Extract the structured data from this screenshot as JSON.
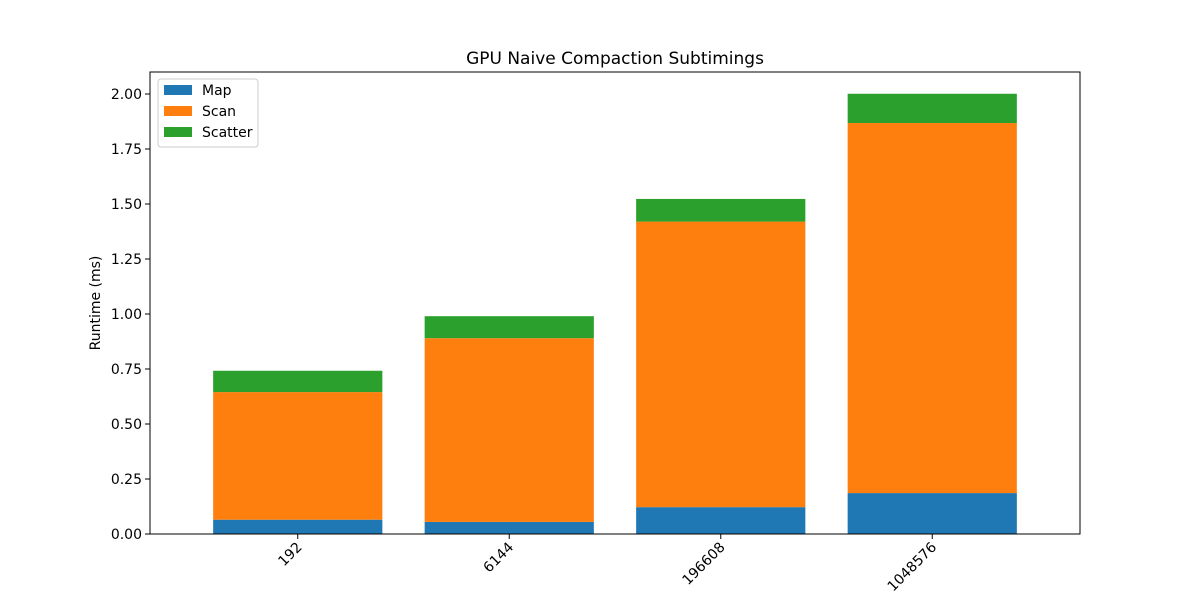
{
  "chart_data": {
    "type": "bar",
    "stacked": true,
    "title": "GPU Naive Compaction Subtimings",
    "xlabel": "",
    "ylabel": "Runtime (ms)",
    "categories": [
      "192",
      "6144",
      "196608",
      "1048576"
    ],
    "series": [
      {
        "name": "Map",
        "color": "#1f77b4",
        "values": [
          0.065,
          0.055,
          0.122,
          0.186
        ]
      },
      {
        "name": "Scan",
        "color": "#ff7f0e",
        "values": [
          0.58,
          0.835,
          1.298,
          1.682
        ]
      },
      {
        "name": "Scatter",
        "color": "#2ca02c",
        "values": [
          0.097,
          0.1,
          0.103,
          0.133
        ]
      }
    ],
    "ylim": [
      0,
      2.1
    ],
    "yticks": [
      "0.00",
      "0.25",
      "0.50",
      "0.75",
      "1.00",
      "1.25",
      "1.50",
      "1.75",
      "2.00"
    ],
    "ytick_values": [
      0,
      0.25,
      0.5,
      0.75,
      1.0,
      1.25,
      1.5,
      1.75,
      2.0
    ],
    "x_tick_rotation": "45",
    "grid": false,
    "legend_position": "upper left"
  }
}
